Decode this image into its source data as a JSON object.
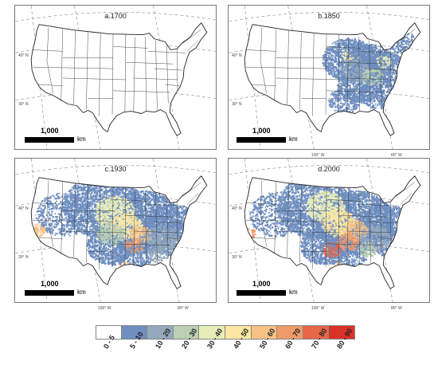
{
  "panels": [
    {
      "id": "a",
      "title": "a.1700",
      "lat_labels": [
        "40° N",
        "30° N"
      ],
      "lon_labels": [],
      "scale_value": "1,000",
      "scale_unit": "km"
    },
    {
      "id": "b",
      "title": "b.1850",
      "lat_labels": [
        "40° N",
        "30° N"
      ],
      "lon_labels": [
        "100° W",
        "80° W"
      ],
      "scale_value": "1,000",
      "scale_unit": "km"
    },
    {
      "id": "c",
      "title": "c.1930",
      "lat_labels": [
        "40° N",
        "30° N"
      ],
      "lon_labels": [
        "100° W",
        "80° W"
      ],
      "scale_value": "1,000",
      "scale_unit": "km"
    },
    {
      "id": "d",
      "title": "d.2000",
      "lat_labels": [
        "40° N",
        "30° N"
      ],
      "lon_labels": [
        "100° W",
        "80° W"
      ],
      "scale_value": "1,000",
      "scale_unit": "km"
    }
  ],
  "legend": {
    "classes": [
      {
        "label": "0 - 5",
        "color": "#ffffff"
      },
      {
        "label": "5 - 10",
        "color": "#6f8fc0"
      },
      {
        "label": "10 - 20",
        "color": "#95a9bd"
      },
      {
        "label": "20 - 30",
        "color": "#bcd0b4"
      },
      {
        "label": "30 - 40",
        "color": "#e8edb8"
      },
      {
        "label": "40 - 50",
        "color": "#fbe6a2"
      },
      {
        "label": "50 - 60",
        "color": "#f7c185"
      },
      {
        "label": "60 - 70",
        "color": "#ef9a68"
      },
      {
        "label": "70 - 80",
        "color": "#e76648"
      },
      {
        "label": "80 - 90",
        "color": "#d93228"
      }
    ]
  }
}
